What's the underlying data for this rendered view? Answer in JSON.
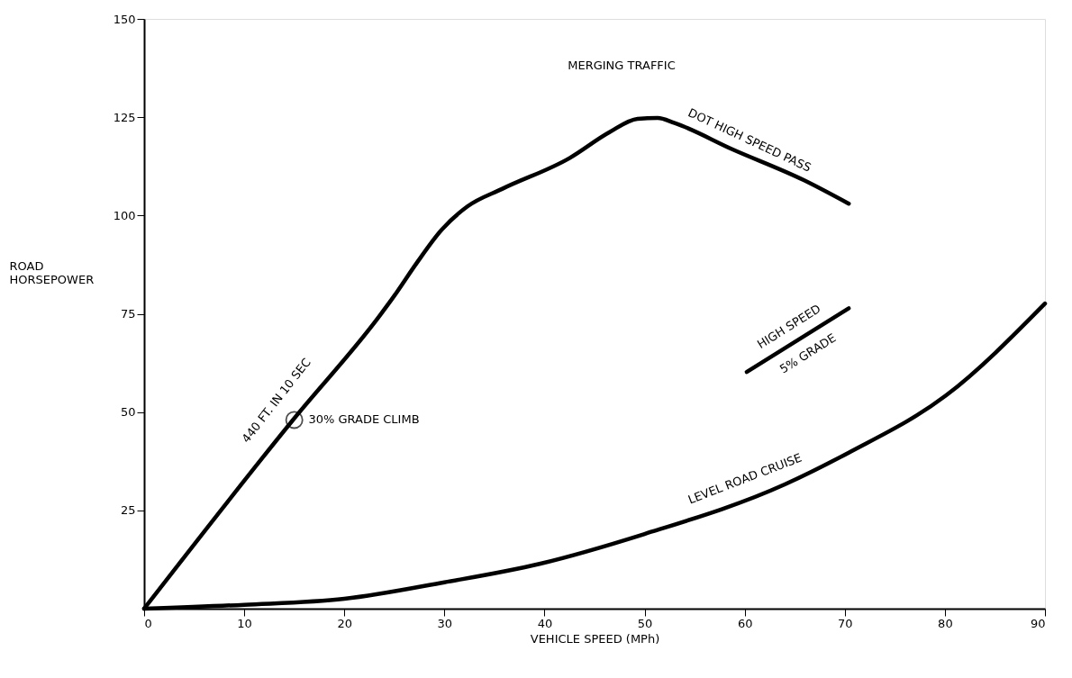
{
  "chart_data": {
    "type": "line",
    "xlabel": "VEHICLE SPEED (MPh)",
    "ylabel": "ROAD HORSEPOWER",
    "xlim": [
      0,
      90
    ],
    "ylim": [
      0,
      150
    ],
    "xticks": [
      0,
      10,
      20,
      30,
      40,
      50,
      60,
      70,
      80,
      90
    ],
    "yticks": [
      25,
      50,
      75,
      100,
      125,
      150
    ],
    "grid": false,
    "line_style": "solid",
    "marker": "none",
    "series": [
      {
        "color": "#000000",
        "x": [
          0,
          14.9,
          23.5,
          25,
          27.2,
          29.7,
          32.3,
          35.8,
          42.5,
          46.5,
          49.3,
          51.3,
          53,
          58.8,
          65.9,
          70.4
        ],
        "values": [
          0,
          48.1,
          74.4,
          79.6,
          87.8,
          96.3,
          102.3,
          106.8,
          114.6,
          121.2,
          124.6,
          124.8,
          123.5,
          116.8,
          109,
          103
        ]
      },
      {
        "color": "#000000",
        "x": [
          0,
          10,
          20,
          30,
          39.5,
          50,
          64,
          70.4,
          80.1,
          90
        ],
        "values": [
          0,
          1,
          2.5,
          6.7,
          11.4,
          19,
          31.6,
          39.7,
          54.2,
          77.6
        ]
      },
      {
        "color": "#000000",
        "x": [
          60.2,
          70.4
        ],
        "values": [
          60.2,
          76.4
        ]
      },
      {
        "type": "scatter",
        "marker": "circle",
        "color": "#000000",
        "x": [
          15
        ],
        "values": [
          48
        ]
      }
    ],
    "annotations": [
      "MERGING TRAFFIC",
      "DOT HIGH SPEED PASS",
      "440 FT. IN 10 SEC",
      "30% GRADE CLIMB",
      "HIGH SPEED",
      "5% GRADE",
      "LEVEL ROAD CRUISE"
    ]
  }
}
